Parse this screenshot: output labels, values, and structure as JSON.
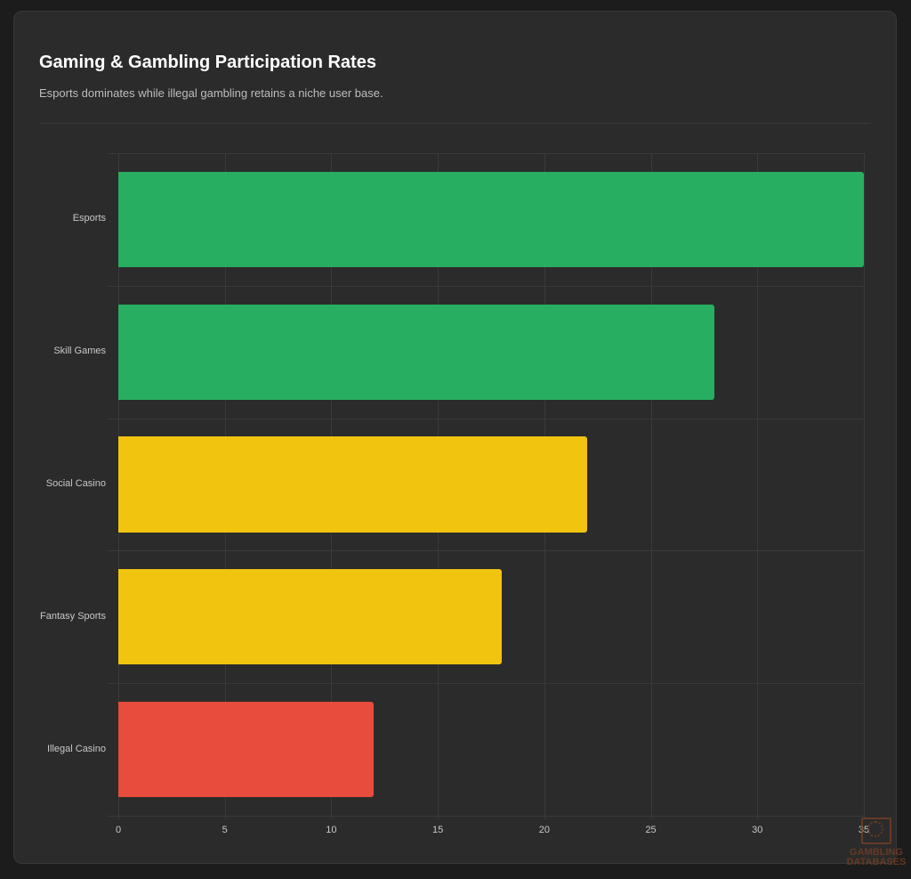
{
  "header": {
    "title": "Gaming & Gambling Participation Rates",
    "subtitle": "Esports dominates while illegal gambling retains a niche user base."
  },
  "colors": {
    "green": "#27ae60",
    "yellow": "#f1c40f",
    "red": "#e74c3c"
  },
  "chart_data": {
    "type": "bar",
    "orientation": "horizontal",
    "title": "Gaming & Gambling Participation Rates",
    "subtitle": "Esports dominates while illegal gambling retains a niche user base.",
    "categories": [
      "Esports",
      "Skill Games",
      "Social Casino",
      "Fantasy Sports",
      "Illegal Casino"
    ],
    "values": [
      35,
      28,
      22,
      18,
      12
    ],
    "bar_colors": [
      "#27ae60",
      "#27ae60",
      "#f1c40f",
      "#f1c40f",
      "#e74c3c"
    ],
    "xlabel": "",
    "ylabel": "",
    "xlim": [
      0,
      35
    ],
    "xticks": [
      "0",
      "5",
      "10",
      "15",
      "20",
      "25",
      "30",
      "35"
    ],
    "grid": true,
    "legend": "none"
  },
  "watermark": {
    "line1": "GAMBLING",
    "line2": "DATABASES"
  }
}
